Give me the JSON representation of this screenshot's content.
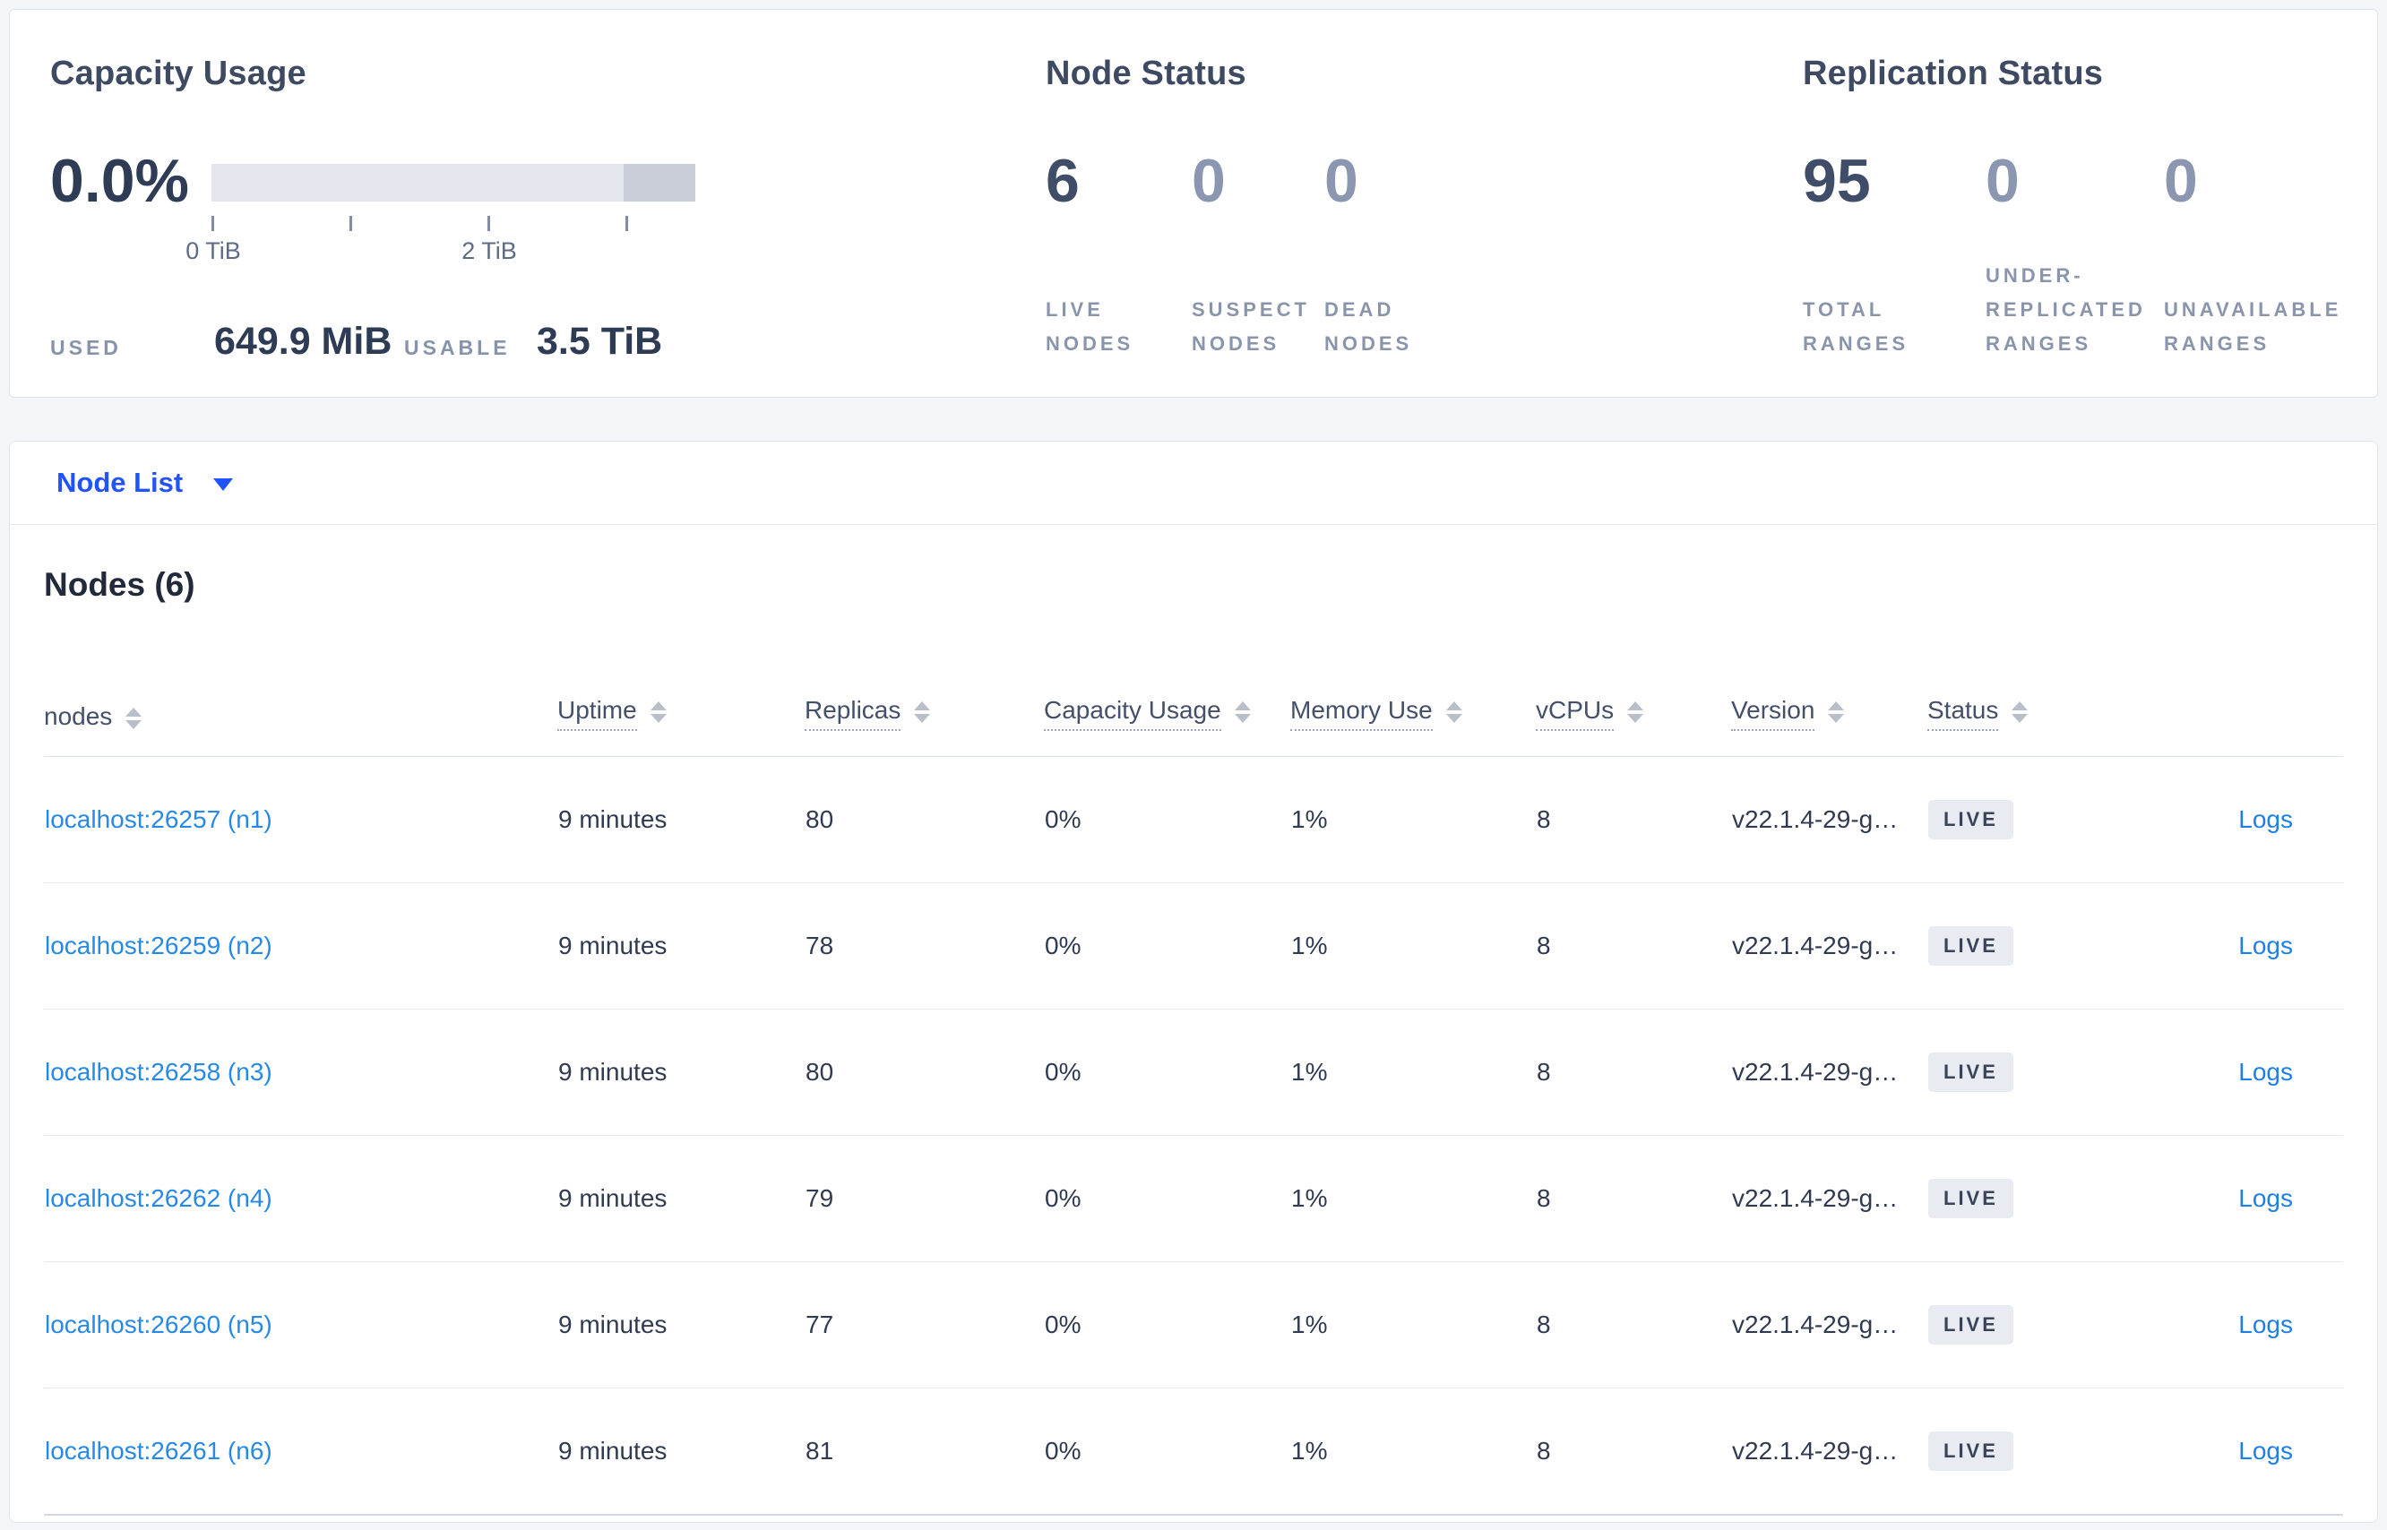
{
  "summary": {
    "capacity": {
      "title": "Capacity Usage",
      "percent": "0.0%",
      "tick_labels": [
        "0 TiB",
        "2 TiB"
      ],
      "used_label": "USED",
      "used_value": "649.9 MiB",
      "usable_label": "USABLE",
      "usable_value": "3.5 TiB"
    },
    "node_status": {
      "title": "Node Status",
      "stats": [
        {
          "value": "6",
          "label": "LIVE NODES",
          "emphasis": true
        },
        {
          "value": "0",
          "label": "SUSPECT NODES",
          "emphasis": false
        },
        {
          "value": "0",
          "label": "DEAD NODES",
          "emphasis": false
        }
      ]
    },
    "replication": {
      "title": "Replication Status",
      "stats": [
        {
          "value": "95",
          "label": "TOTAL RANGES",
          "emphasis": true
        },
        {
          "value": "0",
          "label": "UNDER-REPLICATED RANGES",
          "emphasis": false
        },
        {
          "value": "0",
          "label": "UNAVAILABLE RANGES",
          "emphasis": false
        }
      ]
    }
  },
  "node_list": {
    "label": "Node List"
  },
  "nodes_table": {
    "heading": "Nodes (6)",
    "columns": [
      {
        "label": "nodes",
        "dotted": false
      },
      {
        "label": "Uptime",
        "dotted": true
      },
      {
        "label": "Replicas",
        "dotted": true
      },
      {
        "label": "Capacity Usage",
        "dotted": true
      },
      {
        "label": "Memory Use",
        "dotted": true
      },
      {
        "label": "vCPUs",
        "dotted": true
      },
      {
        "label": "Version",
        "dotted": true
      },
      {
        "label": "Status",
        "dotted": true
      },
      {
        "label": "",
        "dotted": false
      }
    ],
    "logs_label": "Logs",
    "rows": [
      {
        "address": "localhost:26257 (n1)",
        "uptime": "9 minutes",
        "replicas": "80",
        "capacity": "0%",
        "memory": "1%",
        "vcpus": "8",
        "version": "v22.1.4-29-g…",
        "status": "LIVE"
      },
      {
        "address": "localhost:26259 (n2)",
        "uptime": "9 minutes",
        "replicas": "78",
        "capacity": "0%",
        "memory": "1%",
        "vcpus": "8",
        "version": "v22.1.4-29-g…",
        "status": "LIVE"
      },
      {
        "address": "localhost:26258 (n3)",
        "uptime": "9 minutes",
        "replicas": "80",
        "capacity": "0%",
        "memory": "1%",
        "vcpus": "8",
        "version": "v22.1.4-29-g…",
        "status": "LIVE"
      },
      {
        "address": "localhost:26262 (n4)",
        "uptime": "9 minutes",
        "replicas": "79",
        "capacity": "0%",
        "memory": "1%",
        "vcpus": "8",
        "version": "v22.1.4-29-g…",
        "status": "LIVE"
      },
      {
        "address": "localhost:26260 (n5)",
        "uptime": "9 minutes",
        "replicas": "77",
        "capacity": "0%",
        "memory": "1%",
        "vcpus": "8",
        "version": "v22.1.4-29-g…",
        "status": "LIVE"
      },
      {
        "address": "localhost:26261 (n6)",
        "uptime": "9 minutes",
        "replicas": "81",
        "capacity": "0%",
        "memory": "1%",
        "vcpus": "8",
        "version": "v22.1.4-29-g…",
        "status": "LIVE"
      }
    ]
  },
  "colors": {
    "accent_blue": "#2153ff",
    "link_blue": "#2789e6",
    "logs_blue": "#1f7fe8",
    "badge_bg": "#e8ebf1",
    "bar_light": "#e3e6ec",
    "bar_dark": "#c9cdd7"
  }
}
